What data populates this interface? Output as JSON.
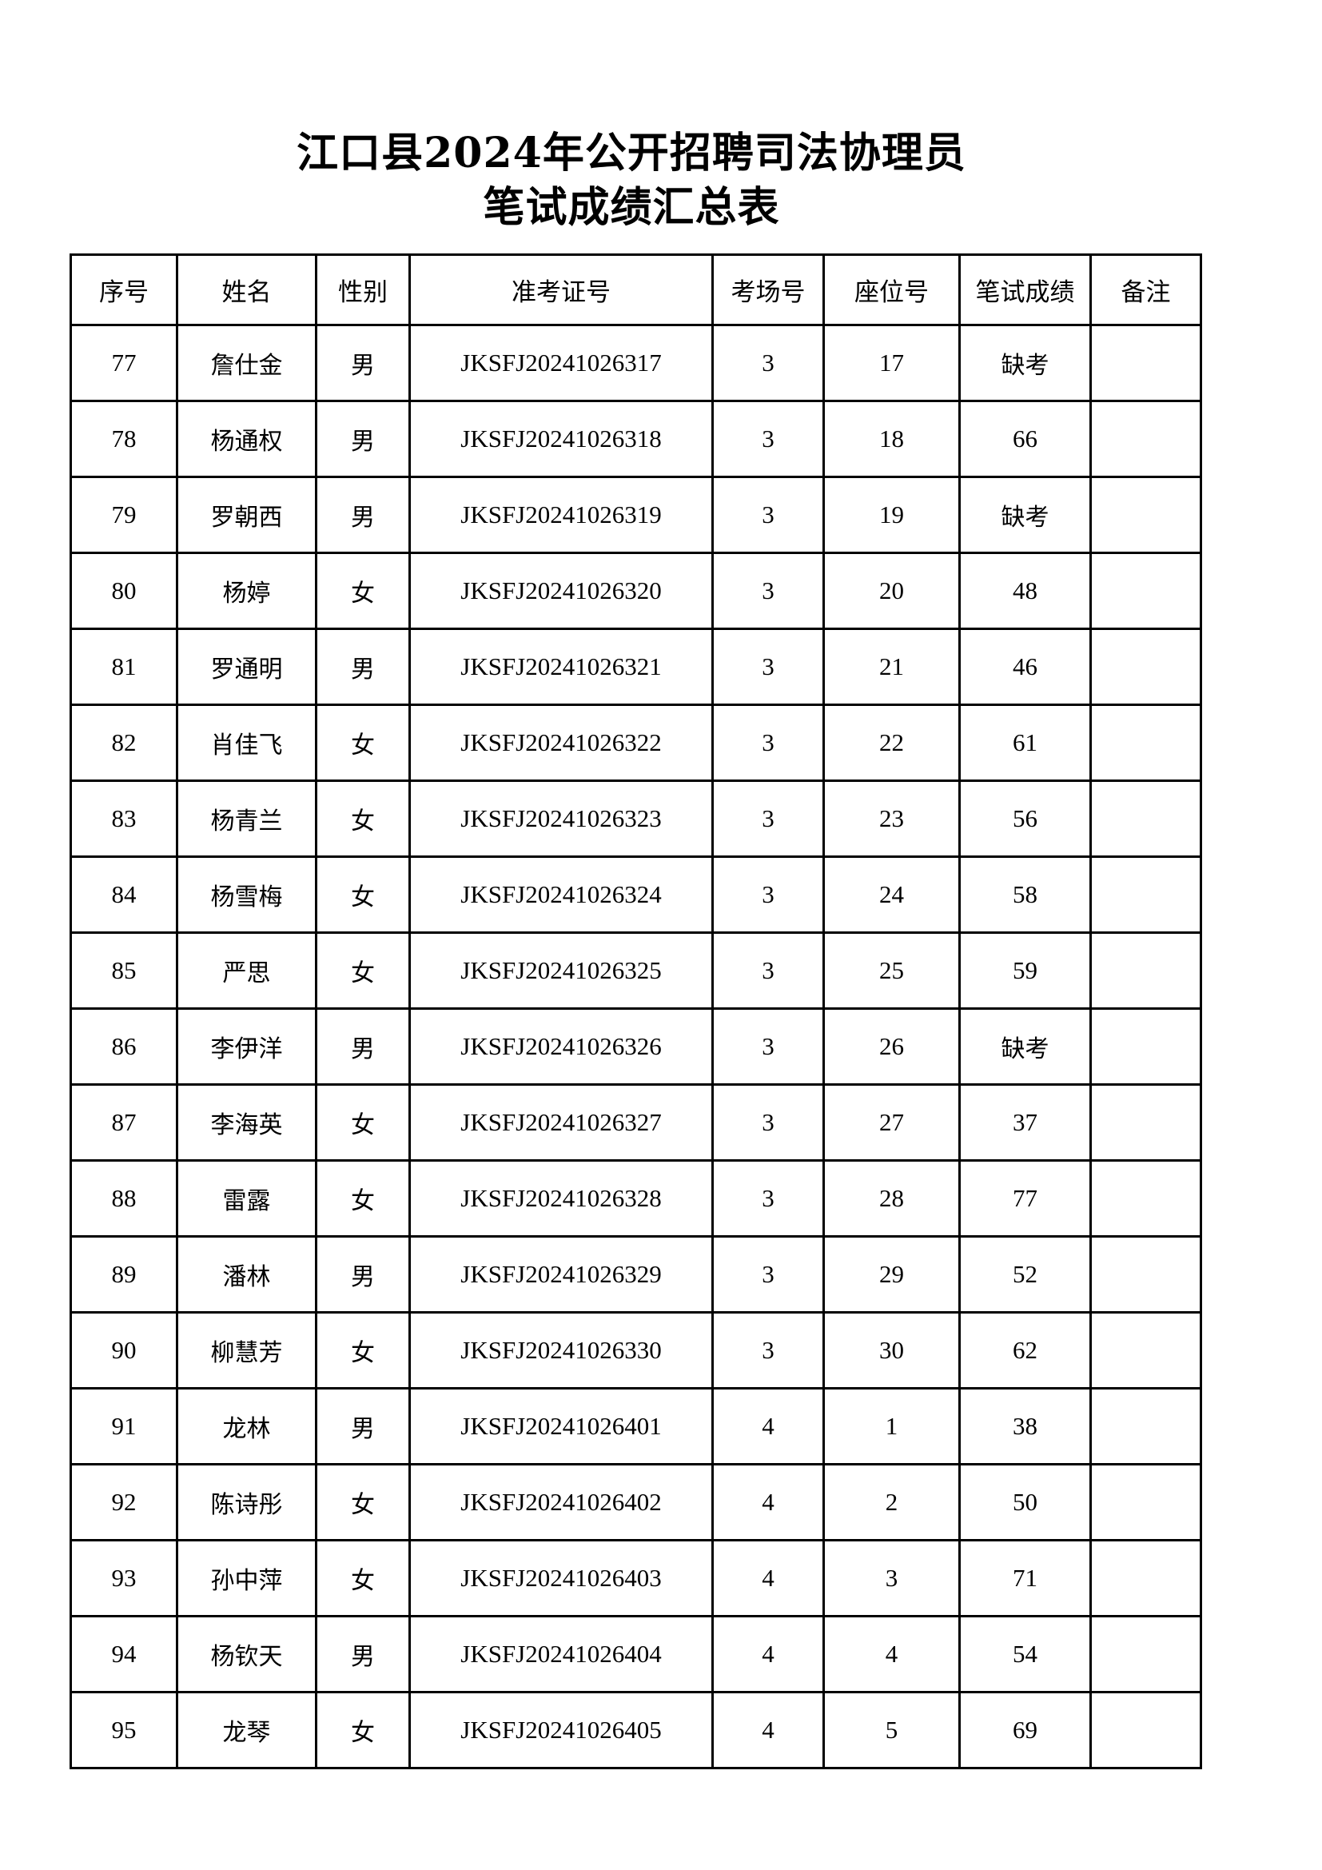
{
  "title_line1": "江口县2024年公开招聘司法协理员",
  "title_line2": "笔试成绩汇总表",
  "columns": [
    "序号",
    "姓名",
    "性别",
    "准考证号",
    "考场号",
    "座位号",
    "笔试成绩",
    "备注"
  ],
  "rows": [
    [
      "77",
      "詹仕金",
      "男",
      "JKSFJ20241026317",
      "3",
      "17",
      "缺考",
      ""
    ],
    [
      "78",
      "杨通权",
      "男",
      "JKSFJ20241026318",
      "3",
      "18",
      "66",
      ""
    ],
    [
      "79",
      "罗朝西",
      "男",
      "JKSFJ20241026319",
      "3",
      "19",
      "缺考",
      ""
    ],
    [
      "80",
      "杨婷",
      "女",
      "JKSFJ20241026320",
      "3",
      "20",
      "48",
      ""
    ],
    [
      "81",
      "罗通明",
      "男",
      "JKSFJ20241026321",
      "3",
      "21",
      "46",
      ""
    ],
    [
      "82",
      "肖佳飞",
      "女",
      "JKSFJ20241026322",
      "3",
      "22",
      "61",
      ""
    ],
    [
      "83",
      "杨青兰",
      "女",
      "JKSFJ20241026323",
      "3",
      "23",
      "56",
      ""
    ],
    [
      "84",
      "杨雪梅",
      "女",
      "JKSFJ20241026324",
      "3",
      "24",
      "58",
      ""
    ],
    [
      "85",
      "严思",
      "女",
      "JKSFJ20241026325",
      "3",
      "25",
      "59",
      ""
    ],
    [
      "86",
      "李伊洋",
      "男",
      "JKSFJ20241026326",
      "3",
      "26",
      "缺考",
      ""
    ],
    [
      "87",
      "李海英",
      "女",
      "JKSFJ20241026327",
      "3",
      "27",
      "37",
      ""
    ],
    [
      "88",
      "雷露",
      "女",
      "JKSFJ20241026328",
      "3",
      "28",
      "77",
      ""
    ],
    [
      "89",
      "潘林",
      "男",
      "JKSFJ20241026329",
      "3",
      "29",
      "52",
      ""
    ],
    [
      "90",
      "柳慧芳",
      "女",
      "JKSFJ20241026330",
      "3",
      "30",
      "62",
      ""
    ],
    [
      "91",
      "龙林",
      "男",
      "JKSFJ20241026401",
      "4",
      "1",
      "38",
      ""
    ],
    [
      "92",
      "陈诗彤",
      "女",
      "JKSFJ20241026402",
      "4",
      "2",
      "50",
      ""
    ],
    [
      "93",
      "孙中萍",
      "女",
      "JKSFJ20241026403",
      "4",
      "3",
      "71",
      ""
    ],
    [
      "94",
      "杨钦天",
      "男",
      "JKSFJ20241026404",
      "4",
      "4",
      "54",
      ""
    ],
    [
      "95",
      "龙琴",
      "女",
      "JKSFJ20241026405",
      "4",
      "5",
      "69",
      ""
    ]
  ]
}
